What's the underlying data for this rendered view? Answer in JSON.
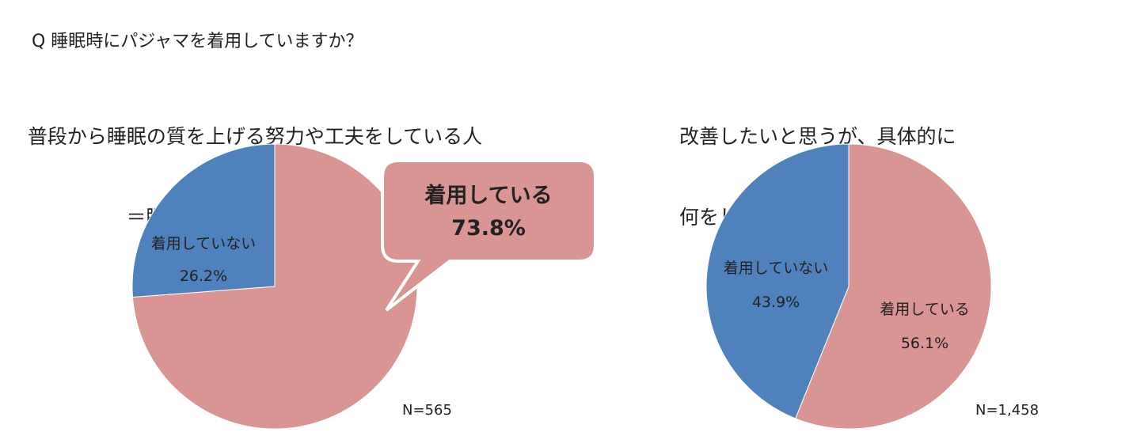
{
  "question": "Q 睡眠時にパジャマを着用していますか？",
  "chart_data": [
    {
      "type": "pie",
      "title_lines": [
        "普段から睡眠の質を上げる努力や工夫をしている人",
        "＝睡眠に対する意識の高い人"
      ],
      "slices": [
        {
          "label": "着用している",
          "value": 73.8,
          "value_text": "73.8%",
          "color": "#D99594"
        },
        {
          "label": "着用していない",
          "value": 26.2,
          "value_text": "26.2%",
          "color": "#4F81BD"
        }
      ],
      "n": "N=565"
    },
    {
      "type": "pie",
      "title_lines": [
        "改善したいと思うが、具体的に",
        "何をしていいのか分からない人"
      ],
      "slices": [
        {
          "label": "着用している",
          "value": 56.1,
          "value_text": "56.1%",
          "color": "#D99594"
        },
        {
          "label": "着用していない",
          "value": 43.9,
          "value_text": "43.9%",
          "color": "#4F81BD"
        }
      ],
      "n": "N=1,458"
    }
  ]
}
